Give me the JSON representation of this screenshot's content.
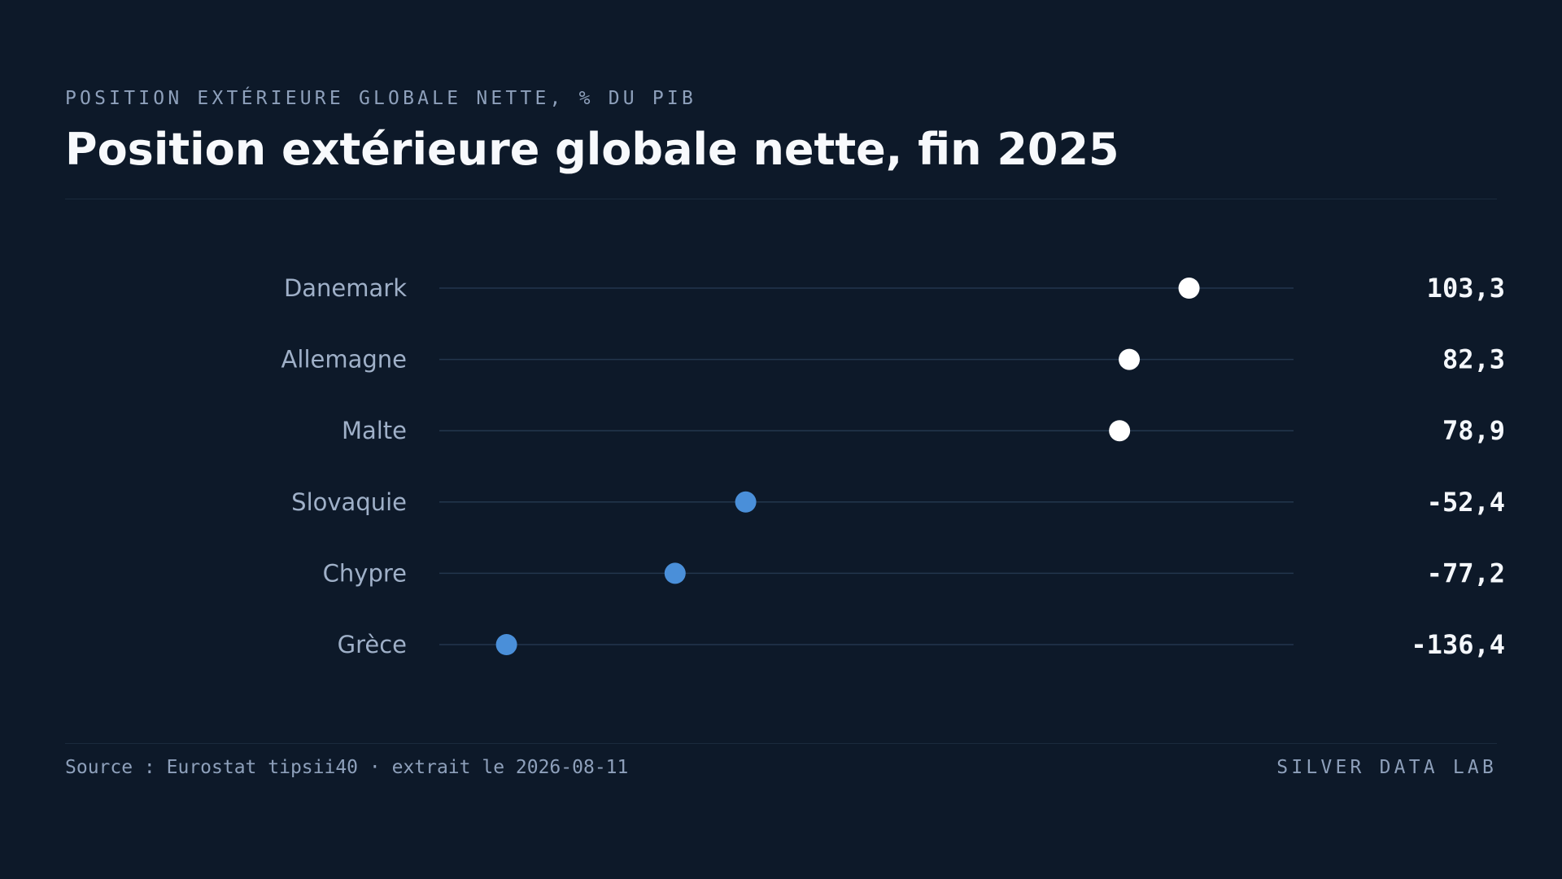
{
  "header": {
    "eyebrow": "POSITION EXTÉRIEURE GLOBALE NETTE, % DU PIB",
    "title": "Position extérieure globale nette, fin 2025"
  },
  "footer": {
    "source": "Source : Eurostat tipsii40 · extrait le 2026-08-11",
    "brand": "SILVER DATA LAB"
  },
  "colors": {
    "background": "#0d1929",
    "positive_dot": "#ffffff",
    "negative_dot": "#4a8fd9",
    "track": "#23364d"
  },
  "chart_data": {
    "type": "dot",
    "title": "Position extérieure globale nette, fin 2025",
    "unit": "% du PIB",
    "categories": [
      "Danemark",
      "Allemagne",
      "Malte",
      "Slovaquie",
      "Chypre",
      "Grèce"
    ],
    "values": [
      103.3,
      82.3,
      78.9,
      -52.4,
      -77.2,
      -136.4
    ],
    "value_labels": [
      "103,3",
      "82,3",
      "78,9",
      "-52,4",
      "-77,2",
      "-136,4"
    ],
    "xlim": [
      -160,
      140
    ],
    "grid": false,
    "legend": "none"
  }
}
